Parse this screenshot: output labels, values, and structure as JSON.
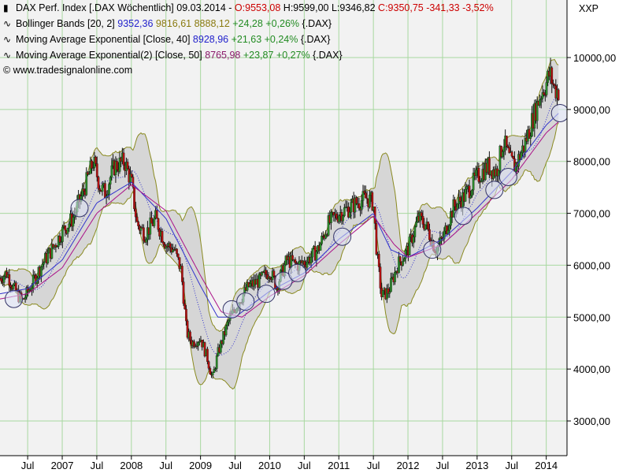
{
  "colors": {
    "bg": "#ffffff",
    "plot_bg": "#f2f2f2",
    "grid": "#a8d8a0",
    "band_fill": "#d6d6d6",
    "band_line": "#8a8a20",
    "ema40": "#3333cc",
    "ema50": "#aa1188",
    "mid_band": "#3333cc",
    "up": "#2a8a2a",
    "down": "#b01010",
    "red_text": "#cc0000",
    "blue_text": "#2222cc",
    "olive_text": "#8a7a10",
    "green_text": "#228b22",
    "purple_text": "#8a1a6a"
  },
  "header": {
    "line1": {
      "icon": "candle-icon",
      "name": "DAX Perf. Index [.DAX  Wöchentlich] 09.03.2014 - ",
      "open": "O:9553,08",
      "high": " H:9599,00",
      "low": " L:9346,82",
      "close": " C:9350,75",
      "change": " -341,33 -3,52%"
    },
    "line2": {
      "icon": "indicator-icon",
      "name": "Bollinger Bands [20, 2] ",
      "v1": "9352,36",
      "v2": " 9816,61",
      "v3": " 8888,12",
      "chg": " +24,28 +0,26%",
      "sym": " {.DAX}"
    },
    "line3": {
      "icon": "indicator-icon",
      "name": "Moving Average Exponential [Close, 40] ",
      "v1": "8928,96",
      "chg": " +21,63 +0,24%",
      "sym": " {.DAX}"
    },
    "line4": {
      "icon": "indicator-icon",
      "name": "Moving Average Exponential(2) [Close, 50] ",
      "v1": "8765,98",
      "chg": " +23,87 +0,27%",
      "sym": " {.DAX}"
    },
    "copyright": "© www.tradesignalonline.com",
    "exchange": "XXP"
  },
  "chart_data": {
    "type": "candlestick",
    "title": "DAX Perf. Index [.DAX  Wöchentlich] 09.03.2014",
    "y_ticks": [
      3000,
      4000,
      5000,
      6000,
      7000,
      8000,
      9000,
      10000
    ],
    "y_tick_labels": [
      "3000,00",
      "4000,00",
      "5000,00",
      "6000,00",
      "7000,00",
      "8000,00",
      "9000,00",
      "10000,00"
    ],
    "ylim": [
      2500,
      10800
    ],
    "x_ticks": [
      {
        "label": "Jul",
        "t": 2006.5
      },
      {
        "label": "2007",
        "t": 2007.0
      },
      {
        "label": "Jul",
        "t": 2007.5
      },
      {
        "label": "2008",
        "t": 2008.0
      },
      {
        "label": "Jul",
        "t": 2008.5
      },
      {
        "label": "2009",
        "t": 2009.0
      },
      {
        "label": "Jul",
        "t": 2009.5
      },
      {
        "label": "2010",
        "t": 2010.0
      },
      {
        "label": "Jul",
        "t": 2010.5
      },
      {
        "label": "2011",
        "t": 2011.0
      },
      {
        "label": "Jul",
        "t": 2011.5
      },
      {
        "label": "2012",
        "t": 2012.0
      },
      {
        "label": "Jul",
        "t": 2012.5
      },
      {
        "label": "2013",
        "t": 2013.0
      },
      {
        "label": "Jul",
        "t": 2013.5
      },
      {
        "label": "2014",
        "t": 2014.0
      }
    ],
    "xlim": [
      2006.1,
      2014.3
    ],
    "grid": true,
    "price_anchors": [
      [
        2006.1,
        5750
      ],
      [
        2006.2,
        5850
      ],
      [
        2006.3,
        5550
      ],
      [
        2006.42,
        5300
      ],
      [
        2006.55,
        5600
      ],
      [
        2006.7,
        6000
      ],
      [
        2006.85,
        6300
      ],
      [
        2007.0,
        6650
      ],
      [
        2007.15,
        6900
      ],
      [
        2007.3,
        7400
      ],
      [
        2007.45,
        8000
      ],
      [
        2007.55,
        7500
      ],
      [
        2007.62,
        7400
      ],
      [
        2007.75,
        7900
      ],
      [
        2007.9,
        8000
      ],
      [
        2008.0,
        7600
      ],
      [
        2008.08,
        6800
      ],
      [
        2008.2,
        6600
      ],
      [
        2008.35,
        6900
      ],
      [
        2008.5,
        6400
      ],
      [
        2008.62,
        6300
      ],
      [
        2008.72,
        5900
      ],
      [
        2008.8,
        4700
      ],
      [
        2008.88,
        4500
      ],
      [
        2009.0,
        4600
      ],
      [
        2009.1,
        4200
      ],
      [
        2009.17,
        3800
      ],
      [
        2009.25,
        4300
      ],
      [
        2009.4,
        4900
      ],
      [
        2009.55,
        5300
      ],
      [
        2009.7,
        5600
      ],
      [
        2009.85,
        5700
      ],
      [
        2010.0,
        5900
      ],
      [
        2010.1,
        5600
      ],
      [
        2010.25,
        6100
      ],
      [
        2010.4,
        6000
      ],
      [
        2010.55,
        6100
      ],
      [
        2010.7,
        6300
      ],
      [
        2010.85,
        6800
      ],
      [
        2011.0,
        7000
      ],
      [
        2011.15,
        7100
      ],
      [
        2011.25,
        7200
      ],
      [
        2011.4,
        7300
      ],
      [
        2011.5,
        7200
      ],
      [
        2011.55,
        6200
      ],
      [
        2011.62,
        5400
      ],
      [
        2011.72,
        5500
      ],
      [
        2011.85,
        6000
      ],
      [
        2012.0,
        6300
      ],
      [
        2012.15,
        6900
      ],
      [
        2012.25,
        6800
      ],
      [
        2012.4,
        6300
      ],
      [
        2012.5,
        6500
      ],
      [
        2012.65,
        7100
      ],
      [
        2012.8,
        7300
      ],
      [
        2013.0,
        7700
      ],
      [
        2013.15,
        7900
      ],
      [
        2013.28,
        7800
      ],
      [
        2013.38,
        8400
      ],
      [
        2013.48,
        8000
      ],
      [
        2013.55,
        7900
      ],
      [
        2013.68,
        8300
      ],
      [
        2013.8,
        8800
      ],
      [
        2013.92,
        9300
      ],
      [
        2014.0,
        9500
      ],
      [
        2014.05,
        9700
      ],
      [
        2014.12,
        9400
      ],
      [
        2014.18,
        9350
      ]
    ],
    "ema40_anchors": [
      [
        2006.1,
        5450
      ],
      [
        2006.5,
        5550
      ],
      [
        2007.0,
        6100
      ],
      [
        2007.5,
        7200
      ],
      [
        2008.0,
        7600
      ],
      [
        2008.5,
        6900
      ],
      [
        2009.0,
        5600
      ],
      [
        2009.25,
        5000
      ],
      [
        2009.5,
        5000
      ],
      [
        2010.0,
        5500
      ],
      [
        2010.5,
        5850
      ],
      [
        2011.0,
        6500
      ],
      [
        2011.5,
        7000
      ],
      [
        2011.75,
        6300
      ],
      [
        2012.0,
        6150
      ],
      [
        2012.5,
        6500
      ],
      [
        2013.0,
        7100
      ],
      [
        2013.5,
        7800
      ],
      [
        2014.0,
        8700
      ],
      [
        2014.18,
        8930
      ]
    ],
    "ema50_anchors": [
      [
        2006.1,
        5350
      ],
      [
        2006.5,
        5450
      ],
      [
        2007.0,
        5950
      ],
      [
        2007.5,
        7000
      ],
      [
        2008.0,
        7550
      ],
      [
        2008.5,
        7050
      ],
      [
        2009.0,
        5800
      ],
      [
        2009.3,
        5100
      ],
      [
        2009.6,
        5000
      ],
      [
        2010.0,
        5400
      ],
      [
        2010.5,
        5800
      ],
      [
        2011.0,
        6400
      ],
      [
        2011.5,
        6950
      ],
      [
        2011.8,
        6400
      ],
      [
        2012.0,
        6150
      ],
      [
        2012.5,
        6400
      ],
      [
        2013.0,
        7000
      ],
      [
        2013.5,
        7650
      ],
      [
        2014.0,
        8550
      ],
      [
        2014.18,
        8766
      ]
    ],
    "circles": [
      [
        2006.3,
        5350
      ],
      [
        2007.25,
        7100
      ],
      [
        2009.45,
        5150
      ],
      [
        2009.65,
        5300
      ],
      [
        2009.95,
        5450
      ],
      [
        2010.2,
        5700
      ],
      [
        2010.4,
        5850
      ],
      [
        2011.05,
        6550
      ],
      [
        2012.35,
        6300
      ],
      [
        2012.8,
        6950
      ],
      [
        2013.25,
        7450
      ],
      [
        2013.45,
        7700
      ],
      [
        2014.2,
        8930
      ]
    ],
    "series": [
      {
        "name": "DAX Perf. Index [.DAX  Wöchentlich]"
      },
      {
        "name": "Bollinger Bands [20, 2]"
      },
      {
        "name": "Moving Average Exponential [Close, 40]"
      },
      {
        "name": "Moving Average Exponential(2) [Close, 50]"
      }
    ]
  }
}
